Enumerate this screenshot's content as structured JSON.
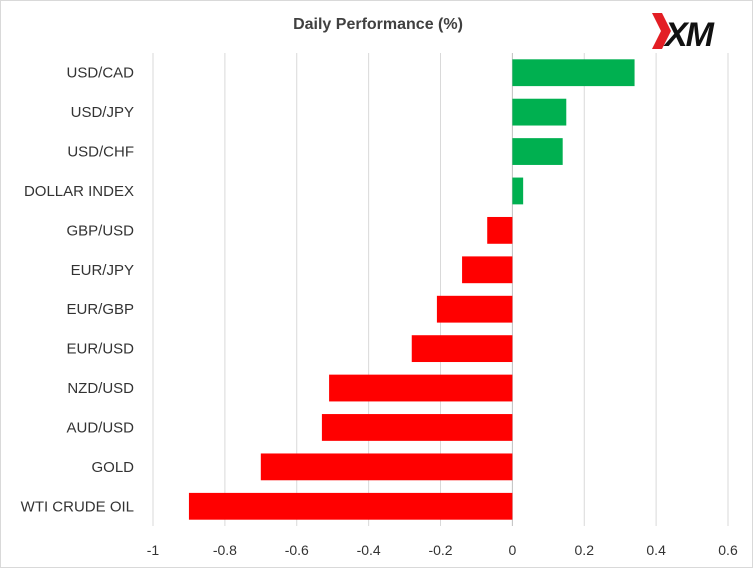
{
  "chart_data": {
    "type": "bar",
    "orientation": "horizontal",
    "title": "Daily Performance (%)",
    "xlabel": "",
    "ylabel": "",
    "categories": [
      "USD/CAD",
      "USD/JPY",
      "USD/CHF",
      "DOLLAR INDEX",
      "GBP/USD",
      "EUR/JPY",
      "EUR/GBP",
      "EUR/USD",
      "NZD/USD",
      "AUD/USD",
      "GOLD",
      "WTI CRUDE OIL"
    ],
    "values": [
      0.34,
      0.15,
      0.14,
      0.03,
      -0.07,
      -0.14,
      -0.21,
      -0.28,
      -0.51,
      -0.53,
      -0.7,
      -0.9
    ],
    "xlim": [
      -1,
      0.6
    ],
    "xticks": [
      -1,
      -0.8,
      -0.6,
      -0.4,
      -0.2,
      0,
      0.2,
      0.4,
      0.6
    ],
    "xtick_labels": [
      "-1",
      "-0.8",
      "-0.6",
      "-0.4",
      "-0.2",
      "0",
      "0.2",
      "0.4",
      "0.6"
    ],
    "grid": "vertical",
    "legend": "none",
    "colors": {
      "positive": "#00b050",
      "negative": "#ff0000",
      "grid": "#d9d9d9",
      "zero_line": "#bfbfbf"
    }
  },
  "logo": {
    "text": "XM",
    "accent_color": "#e31e24"
  }
}
